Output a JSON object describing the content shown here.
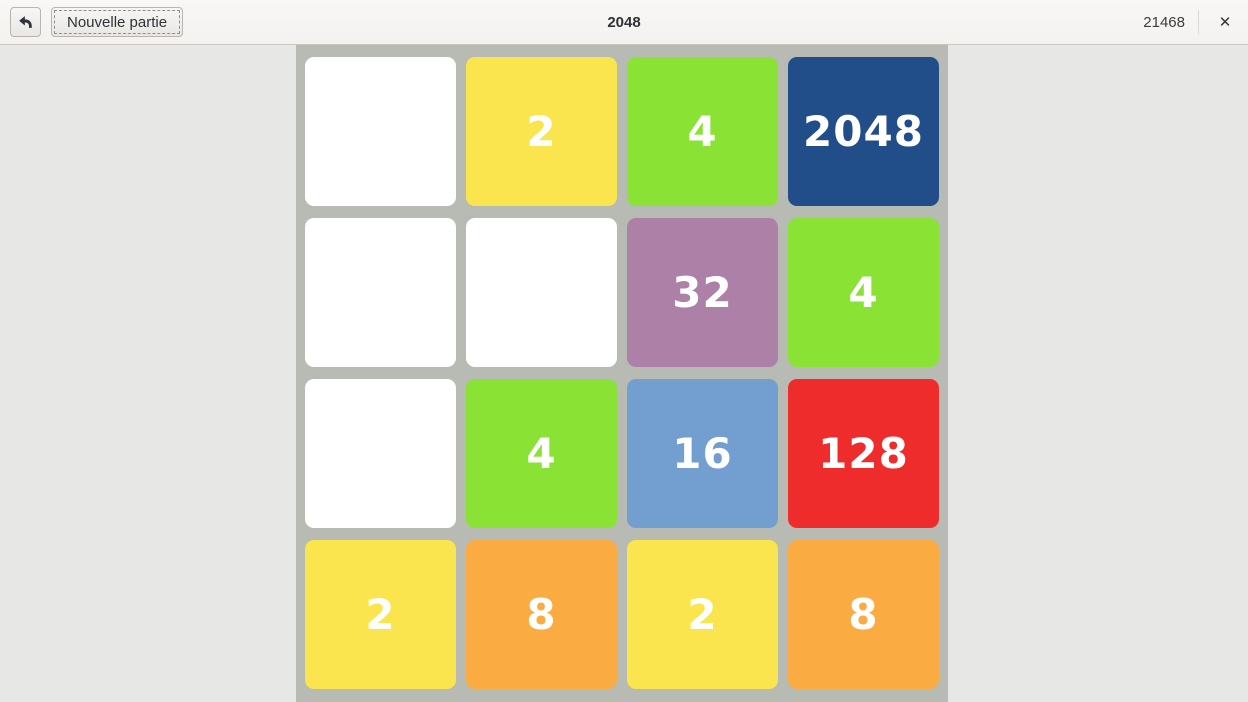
{
  "header": {
    "title": "2048",
    "undo_icon": "undo-arrow",
    "new_game_label": "Nouvelle partie",
    "score": "21468",
    "close_icon": "×"
  },
  "board": {
    "rows": 4,
    "cols": 4,
    "tiles": [
      [
        null,
        2,
        4,
        2048
      ],
      [
        null,
        null,
        32,
        4
      ],
      [
        null,
        4,
        16,
        128
      ],
      [
        2,
        8,
        2,
        8
      ]
    ],
    "grid_background": "#b8bbb3",
    "empty_tile_color": "#ffffff",
    "tile_text_color": "#ffffff",
    "tile_colors": {
      "2": "#fbe54e",
      "4": "#8ae234",
      "8": "#faac42",
      "16": "#729fcf",
      "32": "#ad80a8",
      "128": "#ee2c2c",
      "2048": "#214d88"
    }
  }
}
